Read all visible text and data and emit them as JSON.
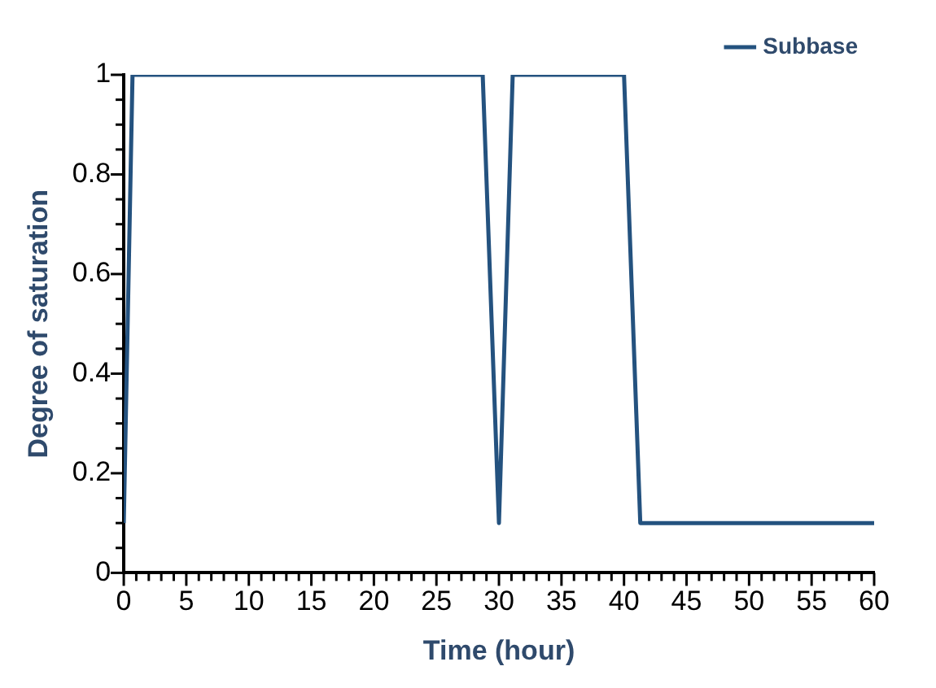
{
  "chart_data": {
    "type": "line",
    "xlabel": "Time (hour)",
    "ylabel": "Degree of saturation",
    "x": [
      0,
      0.7,
      28.7,
      30,
      31.1,
      40,
      41.3,
      60
    ],
    "series": [
      {
        "name": "Subbase",
        "color": "#24527f",
        "values": [
          0.1,
          1,
          1,
          0.1,
          1,
          1,
          0.1,
          0.1
        ]
      }
    ],
    "xlim": [
      0,
      60
    ],
    "xticks": [
      0,
      {
        "value": 1,
        "label": null
      },
      {
        "value": 2,
        "label": null
      },
      {
        "value": 3,
        "label": null
      },
      {
        "value": 4,
        "label": null
      },
      5,
      {
        "value": 6,
        "label": null
      },
      {
        "value": 7,
        "label": null
      },
      {
        "value": 8,
        "label": null
      },
      {
        "value": 9,
        "label": null
      },
      10,
      {
        "value": 11,
        "label": null
      },
      {
        "value": 12,
        "label": null
      },
      {
        "value": 13,
        "label": null
      },
      {
        "value": 14,
        "label": null
      },
      15,
      {
        "value": 16,
        "label": null
      },
      {
        "value": 17,
        "label": null
      },
      {
        "value": 18,
        "label": null
      },
      {
        "value": 19,
        "label": null
      },
      20,
      {
        "value": 21,
        "label": null
      },
      {
        "value": 22,
        "label": null
      },
      {
        "value": 23,
        "label": null
      },
      {
        "value": 24,
        "label": null
      },
      25,
      {
        "value": 26,
        "label": null
      },
      {
        "value": 27,
        "label": null
      },
      {
        "value": 28,
        "label": null
      },
      {
        "value": 29,
        "label": null
      },
      30,
      {
        "value": 31,
        "label": null
      },
      {
        "value": 32,
        "label": null
      },
      {
        "value": 33,
        "label": null
      },
      {
        "value": 34,
        "label": null
      },
      35,
      {
        "value": 36,
        "label": null
      },
      {
        "value": 37,
        "label": null
      },
      {
        "value": 38,
        "label": null
      },
      {
        "value": 39,
        "label": null
      },
      40,
      {
        "value": 41,
        "label": null
      },
      {
        "value": 42,
        "label": null
      },
      {
        "value": 43,
        "label": null
      },
      {
        "value": 44,
        "label": null
      },
      45,
      {
        "value": 46,
        "label": null
      },
      {
        "value": 47,
        "label": null
      },
      {
        "value": 48,
        "label": null
      },
      {
        "value": 49,
        "label": null
      },
      50,
      {
        "value": 51,
        "label": null
      },
      {
        "value": 52,
        "label": null
      },
      {
        "value": 53,
        "label": null
      },
      {
        "value": 54,
        "label": null
      },
      55,
      {
        "value": 56,
        "label": null
      },
      {
        "value": 57,
        "label": null
      },
      {
        "value": 58,
        "label": null
      },
      {
        "value": 59,
        "label": null
      },
      60
    ],
    "ylim": [
      0,
      1
    ],
    "yticks": [
      0,
      {
        "value": 0.05,
        "label": null
      },
      {
        "value": 0.1,
        "label": null
      },
      {
        "value": 0.15,
        "label": null
      },
      0.2,
      {
        "value": 0.25,
        "label": null
      },
      {
        "value": 0.3,
        "label": null
      },
      {
        "value": 0.35,
        "label": null
      },
      0.4,
      {
        "value": 0.45,
        "label": null
      },
      {
        "value": 0.5,
        "label": null
      },
      {
        "value": 0.55,
        "label": null
      },
      0.6,
      {
        "value": 0.65,
        "label": null
      },
      {
        "value": 0.7,
        "label": null
      },
      {
        "value": 0.75,
        "label": null
      },
      0.8,
      {
        "value": 0.85,
        "label": null
      },
      {
        "value": 0.9,
        "label": null
      },
      {
        "value": 0.95,
        "label": null
      },
      1
    ],
    "grid": false,
    "legend": "top right",
    "marker": "none",
    "line_style": "solid"
  }
}
